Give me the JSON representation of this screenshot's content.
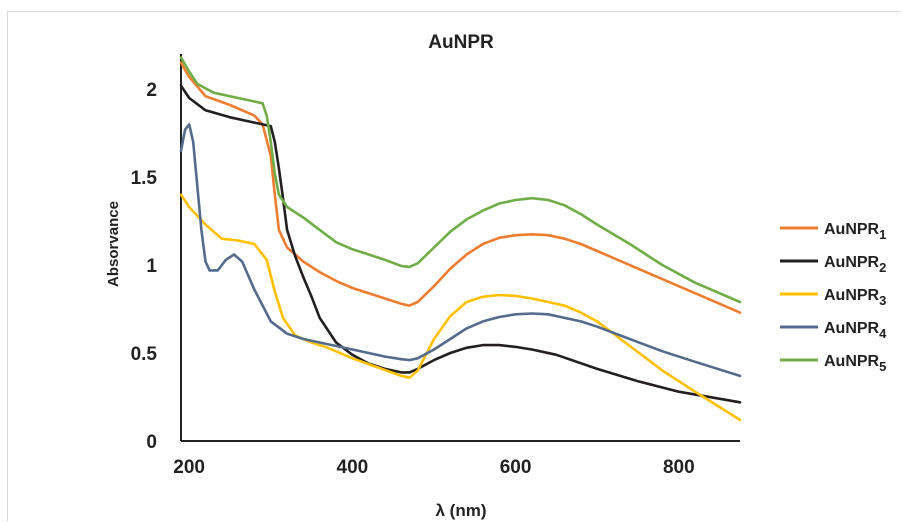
{
  "chart_data": {
    "type": "line",
    "title": "AuNPR",
    "xlabel": "λ (nm)",
    "ylabel": "Absorvance",
    "xlim": [
      190,
      875
    ],
    "ylim": [
      0,
      2.2
    ],
    "xticks": [
      200,
      400,
      600,
      800
    ],
    "yticks": [
      0,
      0.5,
      1,
      1.5,
      2
    ],
    "xtick_labels": [
      "200",
      "400",
      "600",
      "800"
    ],
    "ytick_labels": [
      "0",
      "0.5",
      "1",
      "1.5",
      "2"
    ],
    "grid": false,
    "legend_position": "right",
    "series": [
      {
        "name": "AuNPR",
        "subscript": "1",
        "color": "#ED7D31",
        "points": [
          [
            190,
            2.15
          ],
          [
            200,
            2.07
          ],
          [
            220,
            1.96
          ],
          [
            250,
            1.91
          ],
          [
            280,
            1.85
          ],
          [
            290,
            1.8
          ],
          [
            300,
            1.62
          ],
          [
            305,
            1.4
          ],
          [
            310,
            1.2
          ],
          [
            320,
            1.1
          ],
          [
            340,
            1.02
          ],
          [
            360,
            0.96
          ],
          [
            380,
            0.91
          ],
          [
            400,
            0.87
          ],
          [
            420,
            0.84
          ],
          [
            440,
            0.81
          ],
          [
            460,
            0.78
          ],
          [
            470,
            0.77
          ],
          [
            480,
            0.79
          ],
          [
            500,
            0.88
          ],
          [
            520,
            0.98
          ],
          [
            540,
            1.06
          ],
          [
            560,
            1.12
          ],
          [
            580,
            1.155
          ],
          [
            600,
            1.17
          ],
          [
            620,
            1.175
          ],
          [
            640,
            1.17
          ],
          [
            660,
            1.15
          ],
          [
            680,
            1.12
          ],
          [
            700,
            1.08
          ],
          [
            740,
            1.0
          ],
          [
            780,
            0.92
          ],
          [
            820,
            0.84
          ],
          [
            875,
            0.73
          ]
        ]
      },
      {
        "name": "AuNPR",
        "subscript": "2",
        "color": "#231F20",
        "points": [
          [
            190,
            2.02
          ],
          [
            200,
            1.95
          ],
          [
            220,
            1.88
          ],
          [
            250,
            1.84
          ],
          [
            280,
            1.81
          ],
          [
            300,
            1.79
          ],
          [
            305,
            1.7
          ],
          [
            310,
            1.55
          ],
          [
            315,
            1.38
          ],
          [
            320,
            1.2
          ],
          [
            330,
            1.05
          ],
          [
            340,
            0.93
          ],
          [
            350,
            0.82
          ],
          [
            360,
            0.7
          ],
          [
            380,
            0.56
          ],
          [
            400,
            0.49
          ],
          [
            420,
            0.44
          ],
          [
            440,
            0.41
          ],
          [
            460,
            0.39
          ],
          [
            470,
            0.39
          ],
          [
            480,
            0.41
          ],
          [
            500,
            0.46
          ],
          [
            520,
            0.5
          ],
          [
            540,
            0.53
          ],
          [
            560,
            0.545
          ],
          [
            580,
            0.545
          ],
          [
            600,
            0.535
          ],
          [
            620,
            0.52
          ],
          [
            650,
            0.49
          ],
          [
            700,
            0.41
          ],
          [
            750,
            0.34
          ],
          [
            800,
            0.28
          ],
          [
            875,
            0.22
          ]
        ]
      },
      {
        "name": "AuNPR",
        "subscript": "3",
        "color": "#FFC000",
        "points": [
          [
            190,
            1.4
          ],
          [
            200,
            1.33
          ],
          [
            220,
            1.23
          ],
          [
            240,
            1.15
          ],
          [
            260,
            1.14
          ],
          [
            280,
            1.12
          ],
          [
            295,
            1.03
          ],
          [
            305,
            0.85
          ],
          [
            315,
            0.7
          ],
          [
            330,
            0.6
          ],
          [
            350,
            0.56
          ],
          [
            370,
            0.53
          ],
          [
            400,
            0.47
          ],
          [
            430,
            0.42
          ],
          [
            460,
            0.37
          ],
          [
            470,
            0.36
          ],
          [
            480,
            0.4
          ],
          [
            500,
            0.58
          ],
          [
            520,
            0.71
          ],
          [
            540,
            0.79
          ],
          [
            560,
            0.82
          ],
          [
            580,
            0.83
          ],
          [
            600,
            0.825
          ],
          [
            620,
            0.81
          ],
          [
            640,
            0.79
          ],
          [
            660,
            0.77
          ],
          [
            680,
            0.73
          ],
          [
            700,
            0.68
          ],
          [
            740,
            0.54
          ],
          [
            780,
            0.4
          ],
          [
            820,
            0.28
          ],
          [
            875,
            0.12
          ]
        ]
      },
      {
        "name": "AuNPR",
        "subscript": "4",
        "color": "#556B8C",
        "points": [
          [
            190,
            1.65
          ],
          [
            195,
            1.77
          ],
          [
            200,
            1.8
          ],
          [
            205,
            1.7
          ],
          [
            210,
            1.45
          ],
          [
            215,
            1.2
          ],
          [
            220,
            1.02
          ],
          [
            225,
            0.97
          ],
          [
            235,
            0.97
          ],
          [
            245,
            1.03
          ],
          [
            255,
            1.06
          ],
          [
            265,
            1.02
          ],
          [
            280,
            0.86
          ],
          [
            300,
            0.68
          ],
          [
            320,
            0.61
          ],
          [
            340,
            0.58
          ],
          [
            360,
            0.56
          ],
          [
            380,
            0.54
          ],
          [
            400,
            0.52
          ],
          [
            420,
            0.5
          ],
          [
            440,
            0.48
          ],
          [
            460,
            0.465
          ],
          [
            470,
            0.46
          ],
          [
            480,
            0.47
          ],
          [
            500,
            0.52
          ],
          [
            520,
            0.58
          ],
          [
            540,
            0.64
          ],
          [
            560,
            0.68
          ],
          [
            580,
            0.705
          ],
          [
            600,
            0.72
          ],
          [
            620,
            0.725
          ],
          [
            640,
            0.72
          ],
          [
            660,
            0.7
          ],
          [
            680,
            0.68
          ],
          [
            700,
            0.65
          ],
          [
            740,
            0.58
          ],
          [
            780,
            0.51
          ],
          [
            820,
            0.45
          ],
          [
            875,
            0.37
          ]
        ]
      },
      {
        "name": "AuNPR",
        "subscript": "5",
        "color": "#70AD47",
        "points": [
          [
            190,
            2.18
          ],
          [
            200,
            2.1
          ],
          [
            210,
            2.03
          ],
          [
            230,
            1.98
          ],
          [
            260,
            1.95
          ],
          [
            280,
            1.93
          ],
          [
            290,
            1.92
          ],
          [
            295,
            1.85
          ],
          [
            300,
            1.7
          ],
          [
            305,
            1.52
          ],
          [
            310,
            1.4
          ],
          [
            320,
            1.33
          ],
          [
            340,
            1.27
          ],
          [
            360,
            1.2
          ],
          [
            380,
            1.13
          ],
          [
            400,
            1.09
          ],
          [
            420,
            1.06
          ],
          [
            440,
            1.03
          ],
          [
            460,
            0.995
          ],
          [
            470,
            0.99
          ],
          [
            480,
            1.01
          ],
          [
            500,
            1.1
          ],
          [
            520,
            1.19
          ],
          [
            540,
            1.26
          ],
          [
            560,
            1.31
          ],
          [
            580,
            1.35
          ],
          [
            600,
            1.37
          ],
          [
            620,
            1.38
          ],
          [
            640,
            1.37
          ],
          [
            660,
            1.34
          ],
          [
            680,
            1.29
          ],
          [
            700,
            1.23
          ],
          [
            740,
            1.12
          ],
          [
            780,
            1.0
          ],
          [
            820,
            0.9
          ],
          [
            875,
            0.79
          ]
        ]
      }
    ]
  }
}
